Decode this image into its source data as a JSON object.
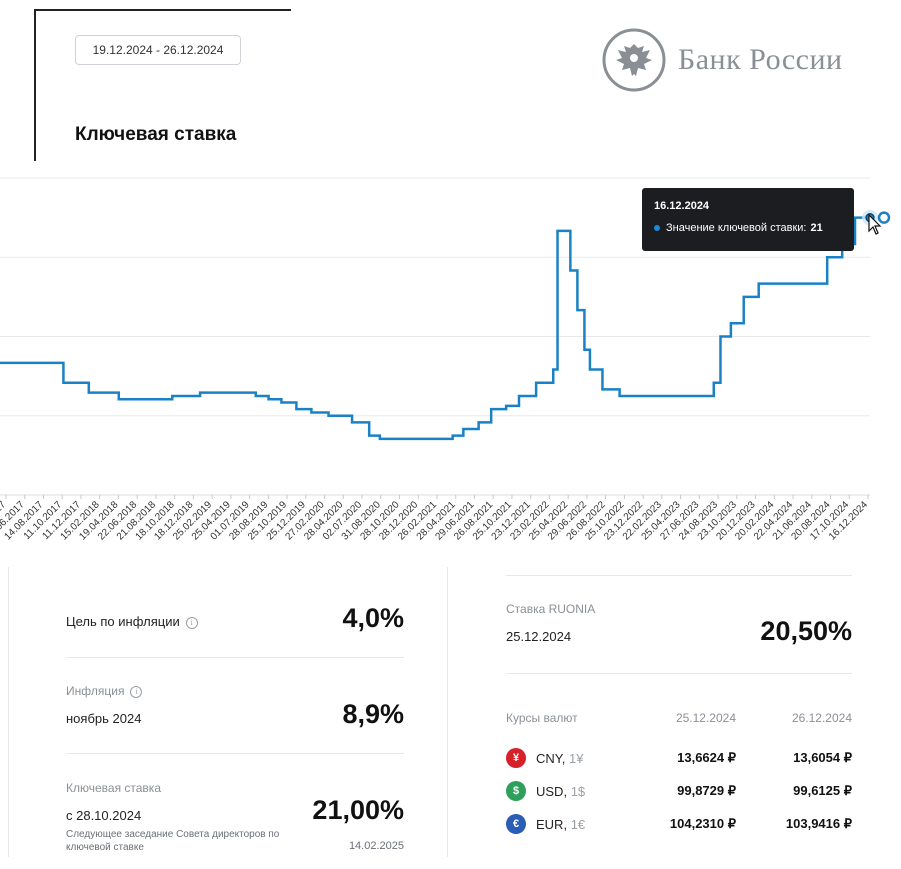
{
  "header": {
    "date_range": "19.12.2024 - 26.12.2024",
    "title": "Ключевая ставка",
    "logo_text": "Банк России"
  },
  "chart_data": {
    "type": "line",
    "x_dates": [
      "28.12.2016",
      "26.09.2017",
      "18.12.2017",
      "26.03.2018",
      "17.09.2018",
      "17.12.2018",
      "17.06.2019",
      "29.07.2019",
      "09.09.2019",
      "28.10.2019",
      "16.12.2019",
      "10.02.2020",
      "27.04.2020",
      "22.06.2020",
      "27.07.2020",
      "22.03.2021",
      "26.04.2021",
      "15.06.2021",
      "26.07.2021",
      "13.09.2021",
      "25.10.2021",
      "20.12.2021",
      "14.02.2022",
      "28.02.2022",
      "11.04.2022",
      "04.05.2022",
      "27.05.2022",
      "14.06.2022",
      "25.07.2022",
      "19.09.2022",
      "24.07.2023",
      "15.08.2023",
      "18.09.2023",
      "30.10.2023",
      "18.12.2023",
      "29.07.2024",
      "16.09.2024",
      "28.10.2024",
      "16.12.2024"
    ],
    "values": [
      10.0,
      8.5,
      7.75,
      7.25,
      7.5,
      7.75,
      7.5,
      7.25,
      7.0,
      6.5,
      6.25,
      6.0,
      5.5,
      4.5,
      4.25,
      4.5,
      5.0,
      5.5,
      6.5,
      6.75,
      7.5,
      8.5,
      9.5,
      20.0,
      17.0,
      14.0,
      11.0,
      9.5,
      8.0,
      7.5,
      8.5,
      12.0,
      13.0,
      15.0,
      16.0,
      18.0,
      19.0,
      21.0,
      21.0
    ],
    "tick_labels": [
      "2017",
      "05.06.2017",
      "14.08.2017",
      "11.10.2017",
      "11.12.2017",
      "15.02.2018",
      "19.04.2018",
      "22.06.2018",
      "21.08.2018",
      "18.10.2018",
      "18.12.2018",
      "25.02.2019",
      "25.04.2019",
      "01.07.2019",
      "28.08.2019",
      "25.10.2019",
      "25.12.2019",
      "27.02.2020",
      "28.04.2020",
      "02.07.2020",
      "31.08.2020",
      "28.10.2020",
      "28.12.2020",
      "26.02.2021",
      "28.04.2021",
      "29.06.2021",
      "26.08.2021",
      "25.10.2021",
      "23.12.2021",
      "23.02.2022",
      "25.04.2022",
      "29.06.2022",
      "26.08.2022",
      "25.10.2022",
      "23.12.2022",
      "22.02.2023",
      "25.04.2023",
      "27.06.2023",
      "24.08.2023",
      "23.10.2023",
      "20.12.2023",
      "20.02.2024",
      "22.04.2024",
      "21.06.2024",
      "20.08.2024",
      "17.10.2024",
      "16.12.2024"
    ],
    "ylim": [
      0,
      24
    ],
    "grid": true,
    "line_color": "#1a82c4",
    "tooltip": {
      "date": "16.12.2024",
      "label": "Значение ключевой ставки:",
      "value": "21"
    }
  },
  "stats": {
    "inflation_target": {
      "label": "Цель по инфляции",
      "value": "4,0%"
    },
    "inflation": {
      "label": "Инфляция",
      "period": "ноябрь 2024",
      "value": "8,9%"
    },
    "key_rate": {
      "label": "Ключевая ставка",
      "since": "с 28.10.2024",
      "value": "21,00%",
      "next_meeting_label": "Следующее заседание Совета директоров по ключевой ставке",
      "next_meeting_date": "14.02.2025"
    },
    "ruonia": {
      "label": "Ставка RUONIA",
      "date": "25.12.2024",
      "value": "20,50%"
    }
  },
  "fx": {
    "title": "Курсы валют",
    "col1": "25.12.2024",
    "col2": "26.12.2024",
    "rows": [
      {
        "symbol": "¥",
        "code": "CNY,",
        "unit": "1¥",
        "v1": "13,6624 ₽",
        "v2": "13,6054 ₽",
        "color": "#d6202a"
      },
      {
        "symbol": "$",
        "code": "USD,",
        "unit": "1$",
        "v1": "99,8729 ₽",
        "v2": "99,6125 ₽",
        "color": "#2fa05b"
      },
      {
        "symbol": "€",
        "code": "EUR,",
        "unit": "1€",
        "v1": "104,2310 ₽",
        "v2": "103,9416 ₽",
        "color": "#2a5db5"
      }
    ]
  }
}
